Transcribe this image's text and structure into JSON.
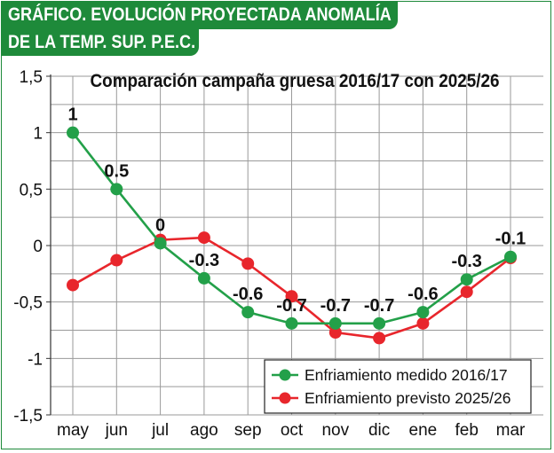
{
  "header": {
    "line1": "GRÁFICO. EVOLUCIÓN PROYECTADA ANOMALÍA",
    "line2": "DE LA TEMP. SUP. P.E.C."
  },
  "chart_data": {
    "type": "line",
    "title": "Comparación campaña gruesa 2016/17 con 2025/26",
    "categories": [
      "may",
      "jun",
      "jul",
      "ago",
      "sep",
      "oct",
      "nov",
      "dic",
      "ene",
      "feb",
      "mar"
    ],
    "yticks": [
      1.5,
      1,
      0.5,
      0,
      -0.5,
      -1,
      -1.5
    ],
    "ytick_labels": [
      "1,5",
      "1",
      "0,5",
      "0",
      "-0,5",
      "-1",
      "-1,5"
    ],
    "ylim": [
      -1.5,
      1.5
    ],
    "grid": true,
    "legend_position": "bottom-right",
    "series": [
      {
        "name": "Enfriamiento medido 2016/17",
        "color": "#23a049",
        "values": [
          1.0,
          0.5,
          0.02,
          -0.29,
          -0.59,
          -0.69,
          -0.69,
          -0.69,
          -0.59,
          -0.3,
          -0.1
        ],
        "labels": [
          "1",
          "0.5",
          "0",
          "-0.3",
          "-0.6",
          "-0.7",
          "-0.7",
          "-0.7",
          "-0.6",
          "-0.3",
          "-0.1"
        ]
      },
      {
        "name": "Enfriamiento previsto 2025/26",
        "color": "#e8262c",
        "values": [
          -0.35,
          -0.13,
          0.05,
          0.07,
          -0.16,
          -0.45,
          -0.77,
          -0.82,
          -0.69,
          -0.41,
          -0.11
        ]
      }
    ]
  }
}
